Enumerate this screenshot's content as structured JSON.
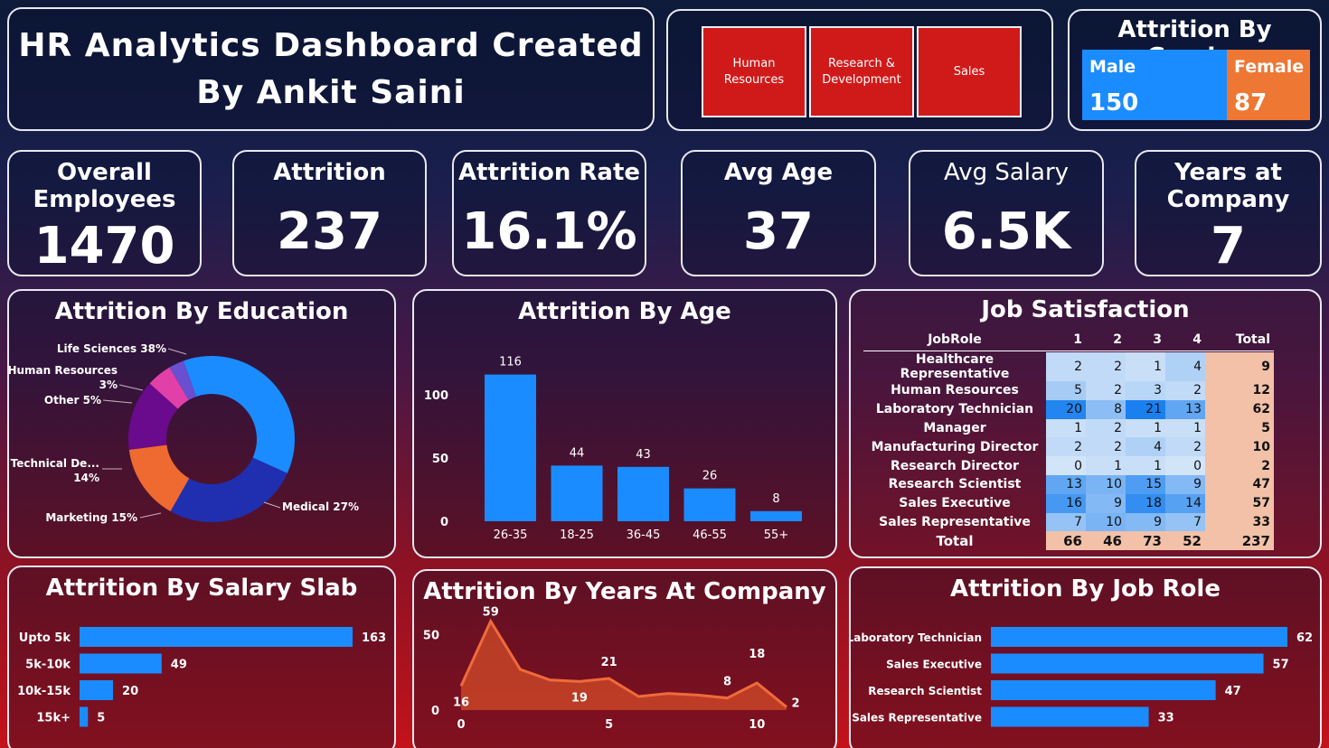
{
  "header": {
    "title_line1": "HR Analytics Dashboard Created",
    "title_line2": "By Ankit Saini"
  },
  "slicers": [
    "Human Resources",
    "Research & Development",
    "Sales"
  ],
  "gender": {
    "title": "Attrition By Gender",
    "male_label": "Male",
    "male_value": "150",
    "male_color": "#1a8cff",
    "female_label": "Female",
    "female_value": "87",
    "female_color": "#ee7733"
  },
  "kpis": [
    {
      "label": "Overall Employees",
      "value": "1470"
    },
    {
      "label": "Attrition",
      "value": "237"
    },
    {
      "label": "Attrition Rate",
      "value": "16.1%"
    },
    {
      "label": "Avg Age",
      "value": "37"
    },
    {
      "label": "Avg Salary",
      "value": "6.5K"
    },
    {
      "label": "Years at Company",
      "value": "7"
    }
  ],
  "panels": {
    "education": "Attrition By Education",
    "age": "Attrition By Age",
    "job_satisfaction": "Job Satisfaction",
    "salary": "Attrition By Salary Slab",
    "years": "Attrition By Years At Company",
    "job_role": "Attrition By Job Role"
  },
  "job_satisfaction": {
    "headers": [
      "JobRole",
      "1",
      "2",
      "3",
      "4",
      "Total"
    ],
    "rows": [
      [
        "Healthcare Representative",
        "2",
        "2",
        "1",
        "4",
        "9"
      ],
      [
        "Human Resources",
        "5",
        "2",
        "3",
        "2",
        "12"
      ],
      [
        "Laboratory Technician",
        "20",
        "8",
        "21",
        "13",
        "62"
      ],
      [
        "Manager",
        "1",
        "2",
        "1",
        "1",
        "5"
      ],
      [
        "Manufacturing Director",
        "2",
        "2",
        "4",
        "2",
        "10"
      ],
      [
        "Research Director",
        "0",
        "1",
        "1",
        "0",
        "2"
      ],
      [
        "Research Scientist",
        "13",
        "10",
        "15",
        "9",
        "47"
      ],
      [
        "Sales Executive",
        "16",
        "9",
        "18",
        "14",
        "57"
      ],
      [
        "Sales Representative",
        "7",
        "10",
        "9",
        "7",
        "33"
      ]
    ],
    "total": [
      "Total",
      "66",
      "46",
      "73",
      "52",
      "237"
    ]
  },
  "chart_data": [
    {
      "type": "pie",
      "title": "Attrition By Education",
      "categories": [
        "Life Sciences",
        "Medical",
        "Marketing",
        "Technical De...",
        "Other",
        "Human Resources"
      ],
      "values": [
        38,
        27,
        15,
        14,
        5,
        3
      ],
      "labels": [
        "Life Sciences 38%",
        "Medical 27%",
        "Marketing 15%",
        "Technical De... 14%",
        "Other 5%",
        "Human Resources 3%"
      ],
      "colors": [
        "#1a8cff",
        "#1f2fb0",
        "#ee6a30",
        "#6a0a8c",
        "#e040a8",
        "#6a4fd0"
      ]
    },
    {
      "type": "bar",
      "title": "Attrition By Age",
      "categories": [
        "26-35",
        "18-25",
        "36-45",
        "46-55",
        "55+"
      ],
      "values": [
        116,
        44,
        43,
        26,
        8
      ],
      "yticks": [
        0,
        50,
        100
      ],
      "ylim": [
        0,
        125
      ]
    },
    {
      "type": "bar",
      "title": "Attrition By Salary Slab",
      "orientation": "horizontal",
      "categories": [
        "Upto 5k",
        "5k-10k",
        "10k-15k",
        "15k+"
      ],
      "values": [
        163,
        49,
        20,
        5
      ]
    },
    {
      "type": "area",
      "title": "Attrition By Years At Company",
      "x": [
        0,
        1,
        2,
        3,
        4,
        5,
        6,
        7,
        8,
        9,
        10,
        11
      ],
      "y": [
        16,
        59,
        27,
        20,
        19,
        21,
        9,
        11,
        10,
        8,
        18,
        2
      ],
      "point_labels": [
        "16",
        "59",
        "",
        "",
        "19",
        "21",
        "",
        "",
        "",
        "8",
        "18",
        "2"
      ],
      "xticks": [
        0,
        5,
        10
      ],
      "yticks": [
        0,
        50
      ]
    },
    {
      "type": "bar",
      "title": "Attrition By Job Role",
      "orientation": "horizontal",
      "categories": [
        "Laboratory Technician",
        "Sales Executive",
        "Research Scientist",
        "Sales Representative"
      ],
      "values": [
        62,
        57,
        47,
        33
      ]
    }
  ]
}
